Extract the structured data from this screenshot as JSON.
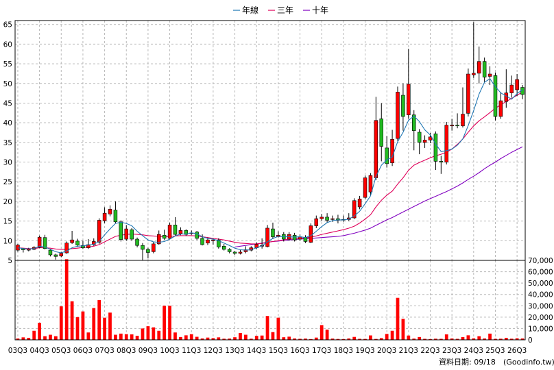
{
  "chart_data": [
    {
      "type": "candlestick",
      "legend": [
        {
          "name": "年線",
          "color": "#1f77b4"
        },
        {
          "name": "三年",
          "color": "#e0005a"
        },
        {
          "name": "十年",
          "color": "#8000c0"
        }
      ],
      "legend_position": "top-center",
      "grid": true,
      "ylim": [
        5,
        66
      ],
      "yticks": [
        5,
        10,
        15,
        20,
        25,
        30,
        35,
        40,
        45,
        50,
        55,
        60,
        65
      ],
      "up_color": "#ff0000",
      "down_color": "#22bb22",
      "candles": [
        {
          "o": 7.6,
          "c": 8.9,
          "h": 9.2,
          "l": 7.2
        },
        {
          "o": 8.0,
          "c": 7.7,
          "h": 8.1,
          "l": 7.0
        },
        {
          "o": 7.6,
          "c": 7.9,
          "h": 8.2,
          "l": 7.3
        },
        {
          "o": 7.8,
          "c": 8.3,
          "h": 8.6,
          "l": 7.6
        },
        {
          "o": 8.3,
          "c": 10.9,
          "h": 11.3,
          "l": 8.1
        },
        {
          "o": 10.8,
          "c": 8.0,
          "h": 11.5,
          "l": 7.8
        },
        {
          "o": 7.6,
          "c": 6.4,
          "h": 7.9,
          "l": 6.0
        },
        {
          "o": 6.4,
          "c": 6.0,
          "h": 6.7,
          "l": 5.2
        },
        {
          "o": 6.1,
          "c": 6.8,
          "h": 7.1,
          "l": 5.8
        },
        {
          "o": 6.9,
          "c": 9.4,
          "h": 9.8,
          "l": 6.7
        },
        {
          "o": 9.5,
          "c": 10.2,
          "h": 12.5,
          "l": 9.2
        },
        {
          "o": 9.9,
          "c": 8.9,
          "h": 10.5,
          "l": 8.4
        },
        {
          "o": 8.8,
          "c": 8.2,
          "h": 10.0,
          "l": 7.9
        },
        {
          "o": 8.2,
          "c": 9.0,
          "h": 10.4,
          "l": 7.9
        },
        {
          "o": 9.0,
          "c": 9.8,
          "h": 10.6,
          "l": 8.7
        },
        {
          "o": 9.6,
          "c": 15.2,
          "h": 15.7,
          "l": 9.2
        },
        {
          "o": 15.1,
          "c": 17.0,
          "h": 18.5,
          "l": 14.5
        },
        {
          "o": 16.8,
          "c": 18.0,
          "h": 19.0,
          "l": 16.2
        },
        {
          "o": 17.8,
          "c": 14.8,
          "h": 20.0,
          "l": 14.5
        },
        {
          "o": 14.8,
          "c": 10.3,
          "h": 15.2,
          "l": 9.8
        },
        {
          "o": 10.4,
          "c": 13.0,
          "h": 14.0,
          "l": 10.0
        },
        {
          "o": 12.8,
          "c": 10.4,
          "h": 13.2,
          "l": 10.0
        },
        {
          "o": 10.4,
          "c": 8.8,
          "h": 10.8,
          "l": 8.3
        },
        {
          "o": 8.8,
          "c": 7.8,
          "h": 9.4,
          "l": 5.0
        },
        {
          "o": 7.8,
          "c": 7.0,
          "h": 8.2,
          "l": 5.5
        },
        {
          "o": 7.2,
          "c": 9.2,
          "h": 9.8,
          "l": 6.8
        },
        {
          "o": 9.2,
          "c": 11.6,
          "h": 12.6,
          "l": 9.0
        },
        {
          "o": 11.4,
          "c": 10.6,
          "h": 12.8,
          "l": 10.2
        },
        {
          "o": 10.6,
          "c": 14.0,
          "h": 14.6,
          "l": 10.4
        },
        {
          "o": 14.0,
          "c": 11.6,
          "h": 16.0,
          "l": 11.2
        },
        {
          "o": 11.8,
          "c": 12.6,
          "h": 13.4,
          "l": 11.4
        },
        {
          "o": 12.6,
          "c": 11.6,
          "h": 12.9,
          "l": 11.2
        },
        {
          "o": 11.8,
          "c": 12.0,
          "h": 12.6,
          "l": 11.5
        },
        {
          "o": 12.2,
          "c": 10.6,
          "h": 12.5,
          "l": 10.2
        },
        {
          "o": 10.6,
          "c": 9.0,
          "h": 11.6,
          "l": 8.8
        },
        {
          "o": 9.4,
          "c": 10.2,
          "h": 10.8,
          "l": 8.9
        },
        {
          "o": 10.0,
          "c": 10.2,
          "h": 10.6,
          "l": 9.0
        },
        {
          "o": 10.2,
          "c": 8.4,
          "h": 10.6,
          "l": 8.0
        },
        {
          "o": 8.6,
          "c": 7.8,
          "h": 9.2,
          "l": 7.5
        },
        {
          "o": 7.8,
          "c": 7.2,
          "h": 8.1,
          "l": 6.8
        },
        {
          "o": 7.1,
          "c": 6.8,
          "h": 7.4,
          "l": 6.4
        },
        {
          "o": 6.8,
          "c": 7.1,
          "h": 7.8,
          "l": 6.5
        },
        {
          "o": 7.2,
          "c": 7.7,
          "h": 8.6,
          "l": 6.8
        },
        {
          "o": 7.6,
          "c": 8.2,
          "h": 8.6,
          "l": 7.3
        },
        {
          "o": 8.2,
          "c": 9.1,
          "h": 9.6,
          "l": 7.8
        },
        {
          "o": 8.6,
          "c": 8.8,
          "h": 10.6,
          "l": 8.0
        },
        {
          "o": 8.5,
          "c": 13.2,
          "h": 14.0,
          "l": 8.3
        },
        {
          "o": 13.0,
          "c": 11.0,
          "h": 14.6,
          "l": 10.4
        },
        {
          "o": 11.0,
          "c": 11.4,
          "h": 12.4,
          "l": 10.8
        },
        {
          "o": 11.6,
          "c": 10.4,
          "h": 12.2,
          "l": 9.8
        },
        {
          "o": 10.4,
          "c": 11.6,
          "h": 12.2,
          "l": 10.0
        },
        {
          "o": 11.4,
          "c": 10.2,
          "h": 12.0,
          "l": 9.8
        },
        {
          "o": 10.4,
          "c": 11.0,
          "h": 11.6,
          "l": 10.0
        },
        {
          "o": 10.8,
          "c": 9.8,
          "h": 11.4,
          "l": 9.4
        },
        {
          "o": 9.6,
          "c": 13.8,
          "h": 14.4,
          "l": 9.4
        },
        {
          "o": 13.8,
          "c": 15.6,
          "h": 16.4,
          "l": 13.2
        },
        {
          "o": 15.6,
          "c": 16.0,
          "h": 16.8,
          "l": 15.0
        },
        {
          "o": 16.0,
          "c": 15.2,
          "h": 17.0,
          "l": 14.6
        },
        {
          "o": 15.4,
          "c": 15.6,
          "h": 16.4,
          "l": 14.8
        },
        {
          "o": 15.6,
          "c": 15.2,
          "h": 16.6,
          "l": 14.4
        },
        {
          "o": 15.4,
          "c": 15.4,
          "h": 16.4,
          "l": 14.8
        },
        {
          "o": 15.4,
          "c": 15.8,
          "h": 17.0,
          "l": 15.0
        },
        {
          "o": 15.8,
          "c": 20.2,
          "h": 20.8,
          "l": 15.5
        },
        {
          "o": 18.6,
          "c": 20.6,
          "h": 21.4,
          "l": 18.0
        },
        {
          "o": 21.0,
          "c": 26.0,
          "h": 26.6,
          "l": 20.5
        },
        {
          "o": 22.4,
          "c": 26.6,
          "h": 27.2,
          "l": 21.5
        },
        {
          "o": 26.0,
          "c": 40.6,
          "h": 46.6,
          "l": 25.4
        },
        {
          "o": 41.0,
          "c": 34.0,
          "h": 45.0,
          "l": 30.2
        },
        {
          "o": 33.6,
          "c": 29.6,
          "h": 36.6,
          "l": 28.6
        },
        {
          "o": 29.8,
          "c": 35.8,
          "h": 38.2,
          "l": 29.0
        },
        {
          "o": 36.0,
          "c": 47.8,
          "h": 49.2,
          "l": 35.4
        },
        {
          "o": 47.0,
          "c": 41.6,
          "h": 50.0,
          "l": 38.0
        },
        {
          "o": 42.0,
          "c": 49.8,
          "h": 58.8,
          "l": 41.0
        },
        {
          "o": 42.0,
          "c": 38.0,
          "h": 43.2,
          "l": 33.0
        },
        {
          "o": 37.6,
          "c": 35.0,
          "h": 38.4,
          "l": 32.0
        },
        {
          "o": 35.0,
          "c": 35.6,
          "h": 36.8,
          "l": 33.6
        },
        {
          "o": 35.6,
          "c": 36.4,
          "h": 37.4,
          "l": 34.8
        },
        {
          "o": 37.2,
          "c": 30.2,
          "h": 37.8,
          "l": 28.0
        },
        {
          "o": 30.2,
          "c": 30.0,
          "h": 31.6,
          "l": 27.0
        },
        {
          "o": 30.0,
          "c": 39.4,
          "h": 40.2,
          "l": 29.4
        },
        {
          "o": 39.2,
          "c": 39.4,
          "h": 41.0,
          "l": 38.0
        },
        {
          "o": 39.4,
          "c": 39.2,
          "h": 42.4,
          "l": 38.6
        },
        {
          "o": 39.2,
          "c": 42.2,
          "h": 49.0,
          "l": 38.8
        },
        {
          "o": 42.4,
          "c": 52.4,
          "h": 53.8,
          "l": 41.6
        },
        {
          "o": 52.2,
          "c": 52.6,
          "h": 65.6,
          "l": 51.4
        },
        {
          "o": 52.6,
          "c": 55.6,
          "h": 59.4,
          "l": 50.0
        },
        {
          "o": 55.6,
          "c": 51.6,
          "h": 56.6,
          "l": 50.4
        },
        {
          "o": 51.8,
          "c": 52.4,
          "h": 54.4,
          "l": 49.6
        },
        {
          "o": 52.0,
          "c": 41.6,
          "h": 52.8,
          "l": 40.6
        },
        {
          "o": 41.6,
          "c": 45.6,
          "h": 47.8,
          "l": 41.0
        },
        {
          "o": 45.4,
          "c": 47.6,
          "h": 53.6,
          "l": 43.8
        },
        {
          "o": 47.6,
          "c": 49.6,
          "h": 52.0,
          "l": 46.4
        },
        {
          "o": 48.4,
          "c": 51.0,
          "h": 52.4,
          "l": 46.8
        },
        {
          "o": 49.0,
          "c": 47.2,
          "h": 49.6,
          "l": 46.0
        }
      ],
      "ma_year": [
        8.2,
        8.0,
        7.9,
        8.0,
        8.6,
        8.4,
        7.8,
        7.2,
        6.9,
        7.4,
        8.2,
        8.6,
        8.7,
        8.9,
        9.1,
        9.8,
        11.5,
        13.0,
        14.4,
        14.7,
        14.4,
        13.8,
        12.4,
        11.3,
        10.2,
        9.7,
        9.6,
        9.8,
        10.4,
        11.2,
        11.7,
        11.7,
        12.0,
        11.8,
        11.0,
        10.6,
        10.4,
        10.0,
        9.4,
        8.8,
        8.1,
        7.7,
        7.6,
        7.7,
        8.2,
        8.7,
        9.7,
        10.6,
        11.1,
        11.0,
        11.0,
        10.9,
        11.0,
        10.8,
        11.3,
        12.4,
        13.6,
        14.6,
        15.1,
        15.3,
        15.3,
        15.5,
        16.3,
        17.5,
        19.4,
        21.4,
        26.3,
        29.2,
        30.6,
        31.3,
        35.2,
        37.6,
        40.6,
        41.7,
        40.3,
        38.2,
        36.9,
        34.6,
        32.7,
        32.9,
        33.3,
        34.3,
        35.9,
        39.3,
        43.1,
        47.3,
        50.3,
        51.2,
        49.2,
        47.6,
        46.8,
        46.0,
        47.4,
        48.4
      ],
      "ma_3y": [
        8.2,
        8.1,
        8.0,
        8.0,
        8.2,
        8.2,
        8.1,
        7.9,
        7.8,
        7.8,
        8.0,
        8.1,
        8.3,
        8.4,
        8.6,
        9.0,
        9.7,
        10.4,
        11.1,
        11.4,
        11.6,
        11.7,
        11.6,
        11.5,
        11.3,
        11.2,
        11.1,
        11.0,
        11.1,
        11.2,
        11.3,
        11.3,
        11.3,
        11.2,
        11.0,
        10.8,
        10.6,
        10.4,
        10.2,
        9.9,
        9.6,
        9.4,
        9.3,
        9.2,
        9.2,
        9.3,
        9.6,
        9.8,
        10.0,
        10.2,
        10.4,
        10.5,
        10.6,
        10.7,
        10.9,
        11.2,
        11.6,
        11.9,
        12.2,
        12.5,
        12.8,
        13.2,
        13.7,
        14.5,
        15.5,
        16.6,
        18.6,
        20.3,
        21.6,
        22.6,
        24.4,
        26.0,
        27.9,
        29.2,
        29.9,
        30.5,
        31.1,
        31.6,
        32.0,
        32.5,
        33.3,
        34.5,
        35.9,
        37.6,
        39.2,
        40.5,
        41.5,
        42.6,
        43.7,
        44.6,
        45.4,
        46.2,
        47.0,
        47.8
      ],
      "ma_10y": [
        null,
        null,
        null,
        null,
        null,
        null,
        null,
        null,
        null,
        null,
        null,
        null,
        null,
        null,
        null,
        null,
        null,
        null,
        null,
        null,
        null,
        null,
        null,
        null,
        null,
        null,
        null,
        null,
        null,
        null,
        null,
        null,
        null,
        null,
        null,
        null,
        null,
        null,
        null,
        null,
        8.4,
        8.6,
        8.8,
        9.0,
        9.2,
        9.4,
        9.6,
        9.8,
        9.9,
        10.1,
        10.2,
        10.3,
        10.4,
        10.5,
        10.6,
        10.7,
        10.8,
        10.9,
        11.0,
        11.1,
        11.3,
        11.6,
        11.9,
        12.3,
        12.7,
        13.2,
        13.9,
        14.6,
        15.3,
        15.9,
        16.6,
        17.3,
        18.0,
        18.7,
        19.4,
        20.1,
        20.7,
        21.3,
        21.9,
        22.5,
        23.2,
        23.9,
        24.7,
        25.6,
        26.4,
        27.3,
        28.3,
        29.2,
        30.0,
        30.9,
        31.7,
        32.5,
        33.2,
        33.9
      ]
    },
    {
      "type": "bar",
      "ylim": [
        0,
        70000
      ],
      "yticks": [
        "0",
        "10,000",
        "20,000",
        "30,000",
        "40,000",
        "50,000",
        "60,000",
        "70,000"
      ],
      "bar_color": "#ff0000",
      "x_labels": [
        "03Q3",
        "04Q3",
        "05Q3",
        "06Q3",
        "07Q3",
        "08Q3",
        "09Q3",
        "10Q3",
        "11Q3",
        "12Q3",
        "13Q3",
        "14Q3",
        "15Q3",
        "16Q3",
        "17Q3",
        "18Q3",
        "19Q3",
        "20Q3",
        "21Q3",
        "22Q3",
        "23Q3",
        "24Q3",
        "25Q3",
        "26Q3"
      ],
      "values": [
        1200,
        2200,
        1800,
        8000,
        15000,
        3200,
        4500,
        3200,
        29500,
        71000,
        34000,
        20000,
        25000,
        6500,
        28000,
        35000,
        19500,
        24000,
        4500,
        5500,
        5000,
        4800,
        3600,
        10000,
        12000,
        11000,
        8000,
        30000,
        30000,
        6500,
        2500,
        4000,
        5000,
        2700,
        1200,
        2000,
        1500,
        2200,
        1000,
        1100,
        2300,
        6000,
        4500,
        1000,
        3500,
        3800,
        21000,
        6800,
        19500,
        2300,
        2800,
        1200,
        900,
        1100,
        700,
        2000,
        13000,
        9000,
        1100,
        800,
        700,
        1200,
        2600,
        900,
        800,
        3900,
        800,
        1500,
        5200,
        8000,
        37000,
        18500,
        3800,
        1100,
        2500,
        900,
        700,
        1000,
        900,
        4800,
        1200,
        900,
        2400,
        4000,
        1300,
        3200,
        1200,
        5500,
        900,
        1000,
        1800,
        1000,
        1400,
        1200
      ]
    }
  ],
  "footer": {
    "date_text": "資料日期: 09/18",
    "source_text": "(Goodinfo.tw)"
  }
}
